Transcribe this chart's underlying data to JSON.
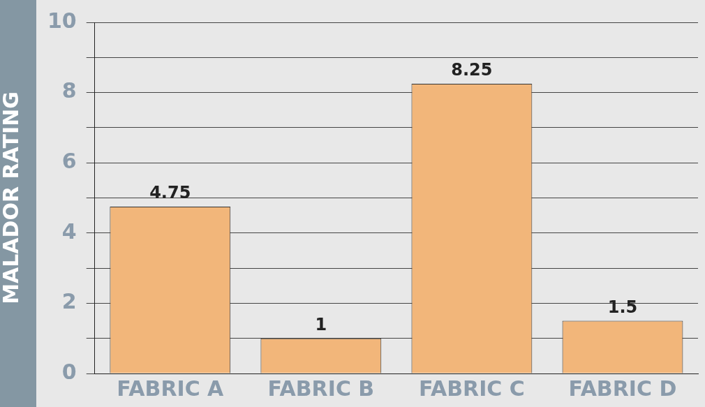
{
  "chart_data": {
    "type": "bar",
    "ylabel": "MALADOR RATING",
    "categories": [
      "FABRIC A",
      "FABRIC B",
      "FABRIC C",
      "FABRIC D"
    ],
    "values": [
      4.75,
      1,
      8.25,
      1.5
    ],
    "color": "#f2b67a",
    "ylim": [
      0,
      10
    ],
    "yticks": [
      0,
      {
        "value": 1,
        "label": null
      },
      2,
      {
        "value": 3,
        "label": null
      },
      4,
      {
        "value": 5,
        "label": null
      },
      6,
      {
        "value": 7,
        "label": null
      },
      8,
      {
        "value": 9,
        "label": null
      },
      10
    ],
    "grid": "y",
    "data_labels": true
  }
}
